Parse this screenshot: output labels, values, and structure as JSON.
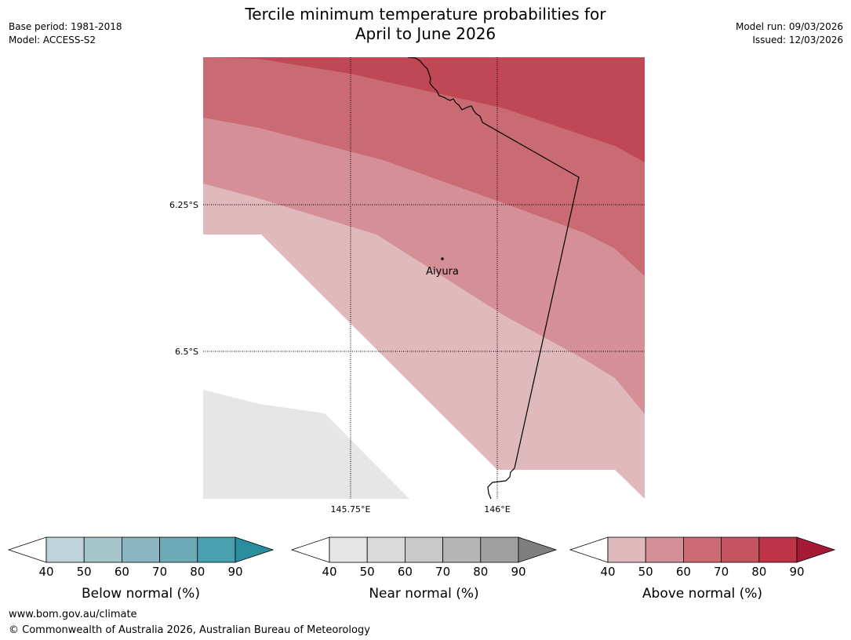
{
  "title": {
    "line1": "Tercile minimum temperature probabilities for",
    "line2": "April to June 2026"
  },
  "meta": {
    "base_period": "Base period: 1981-2018",
    "model": "Model: ACCESS-S2",
    "model_run": "Model run: 09/03/2026",
    "issued": "Issued: 12/03/2026"
  },
  "map": {
    "lat_labels": [
      "6.25°S",
      "6.5°S"
    ],
    "lon_labels": [
      "145.75°E",
      "146°E"
    ],
    "place": {
      "name": "Aiyura"
    }
  },
  "legends": [
    {
      "title": "Below normal (%)",
      "ticks": [
        "40",
        "50",
        "60",
        "70",
        "80",
        "90"
      ],
      "colors": [
        "#bfd3da",
        "#a6c5cb",
        "#8ab5c1",
        "#6eaab6",
        "#49a0ae",
        "#2a8e9e"
      ]
    },
    {
      "title": "Near normal (%)",
      "ticks": [
        "40",
        "50",
        "60",
        "70",
        "80",
        "90"
      ],
      "colors": [
        "#e6e6e6",
        "#dadada",
        "#c9c9c9",
        "#b5b5b5",
        "#a0a0a0",
        "#7f7f7f"
      ]
    },
    {
      "title": "Above normal (%)",
      "ticks": [
        "40",
        "50",
        "60",
        "70",
        "80",
        "90"
      ],
      "colors": [
        "#e0b9bd",
        "#d58f96",
        "#cc6b74",
        "#c65460",
        "#bd3347",
        "#a71a35"
      ]
    }
  ],
  "colors": {
    "above_40": "#e0b9bd",
    "above_50": "#d58f96",
    "above_60": "#ca6a73",
    "above_70": "#c04754",
    "near_40": "#e6e6e6"
  },
  "footer": {
    "url": "www.bom.gov.au/climate",
    "copyright": "© Commonwealth of Australia 2026, Australian Bureau of Meteorology"
  }
}
